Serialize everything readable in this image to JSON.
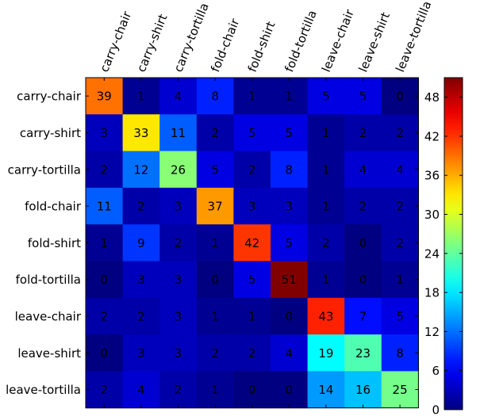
{
  "chart_data": {
    "type": "heatmap",
    "title": "",
    "xlabel": "",
    "ylabel": "",
    "x_categories": [
      "carry-chair",
      "carry-shirt",
      "carry-tortilla",
      "fold-chair",
      "fold-shirt",
      "fold-tortilla",
      "leave-chair",
      "leave-shirt",
      "leave-tortilla"
    ],
    "y_categories": [
      "carry-chair",
      "carry-shirt",
      "carry-tortilla",
      "fold-chair",
      "fold-shirt",
      "fold-tortilla",
      "leave-chair",
      "leave-shirt",
      "leave-tortilla"
    ],
    "values": [
      [
        39,
        1,
        4,
        8,
        1,
        1,
        5,
        5,
        0
      ],
      [
        3,
        33,
        11,
        2,
        5,
        5,
        1,
        2,
        2
      ],
      [
        2,
        12,
        26,
        5,
        2,
        8,
        1,
        4,
        4
      ],
      [
        11,
        2,
        3,
        37,
        3,
        3,
        1,
        2,
        2
      ],
      [
        1,
        9,
        2,
        1,
        42,
        5,
        2,
        0,
        2
      ],
      [
        0,
        3,
        3,
        0,
        5,
        51,
        1,
        0,
        1
      ],
      [
        2,
        2,
        3,
        1,
        1,
        0,
        43,
        7,
        5
      ],
      [
        0,
        3,
        3,
        2,
        2,
        4,
        19,
        23,
        8
      ],
      [
        2,
        4,
        2,
        1,
        0,
        0,
        14,
        16,
        25
      ]
    ],
    "colormap": "jet",
    "vmin": 0,
    "vmax": 51,
    "colorbar_ticks": [
      "0",
      "6",
      "12",
      "18",
      "24",
      "30",
      "36",
      "42",
      "48"
    ]
  }
}
